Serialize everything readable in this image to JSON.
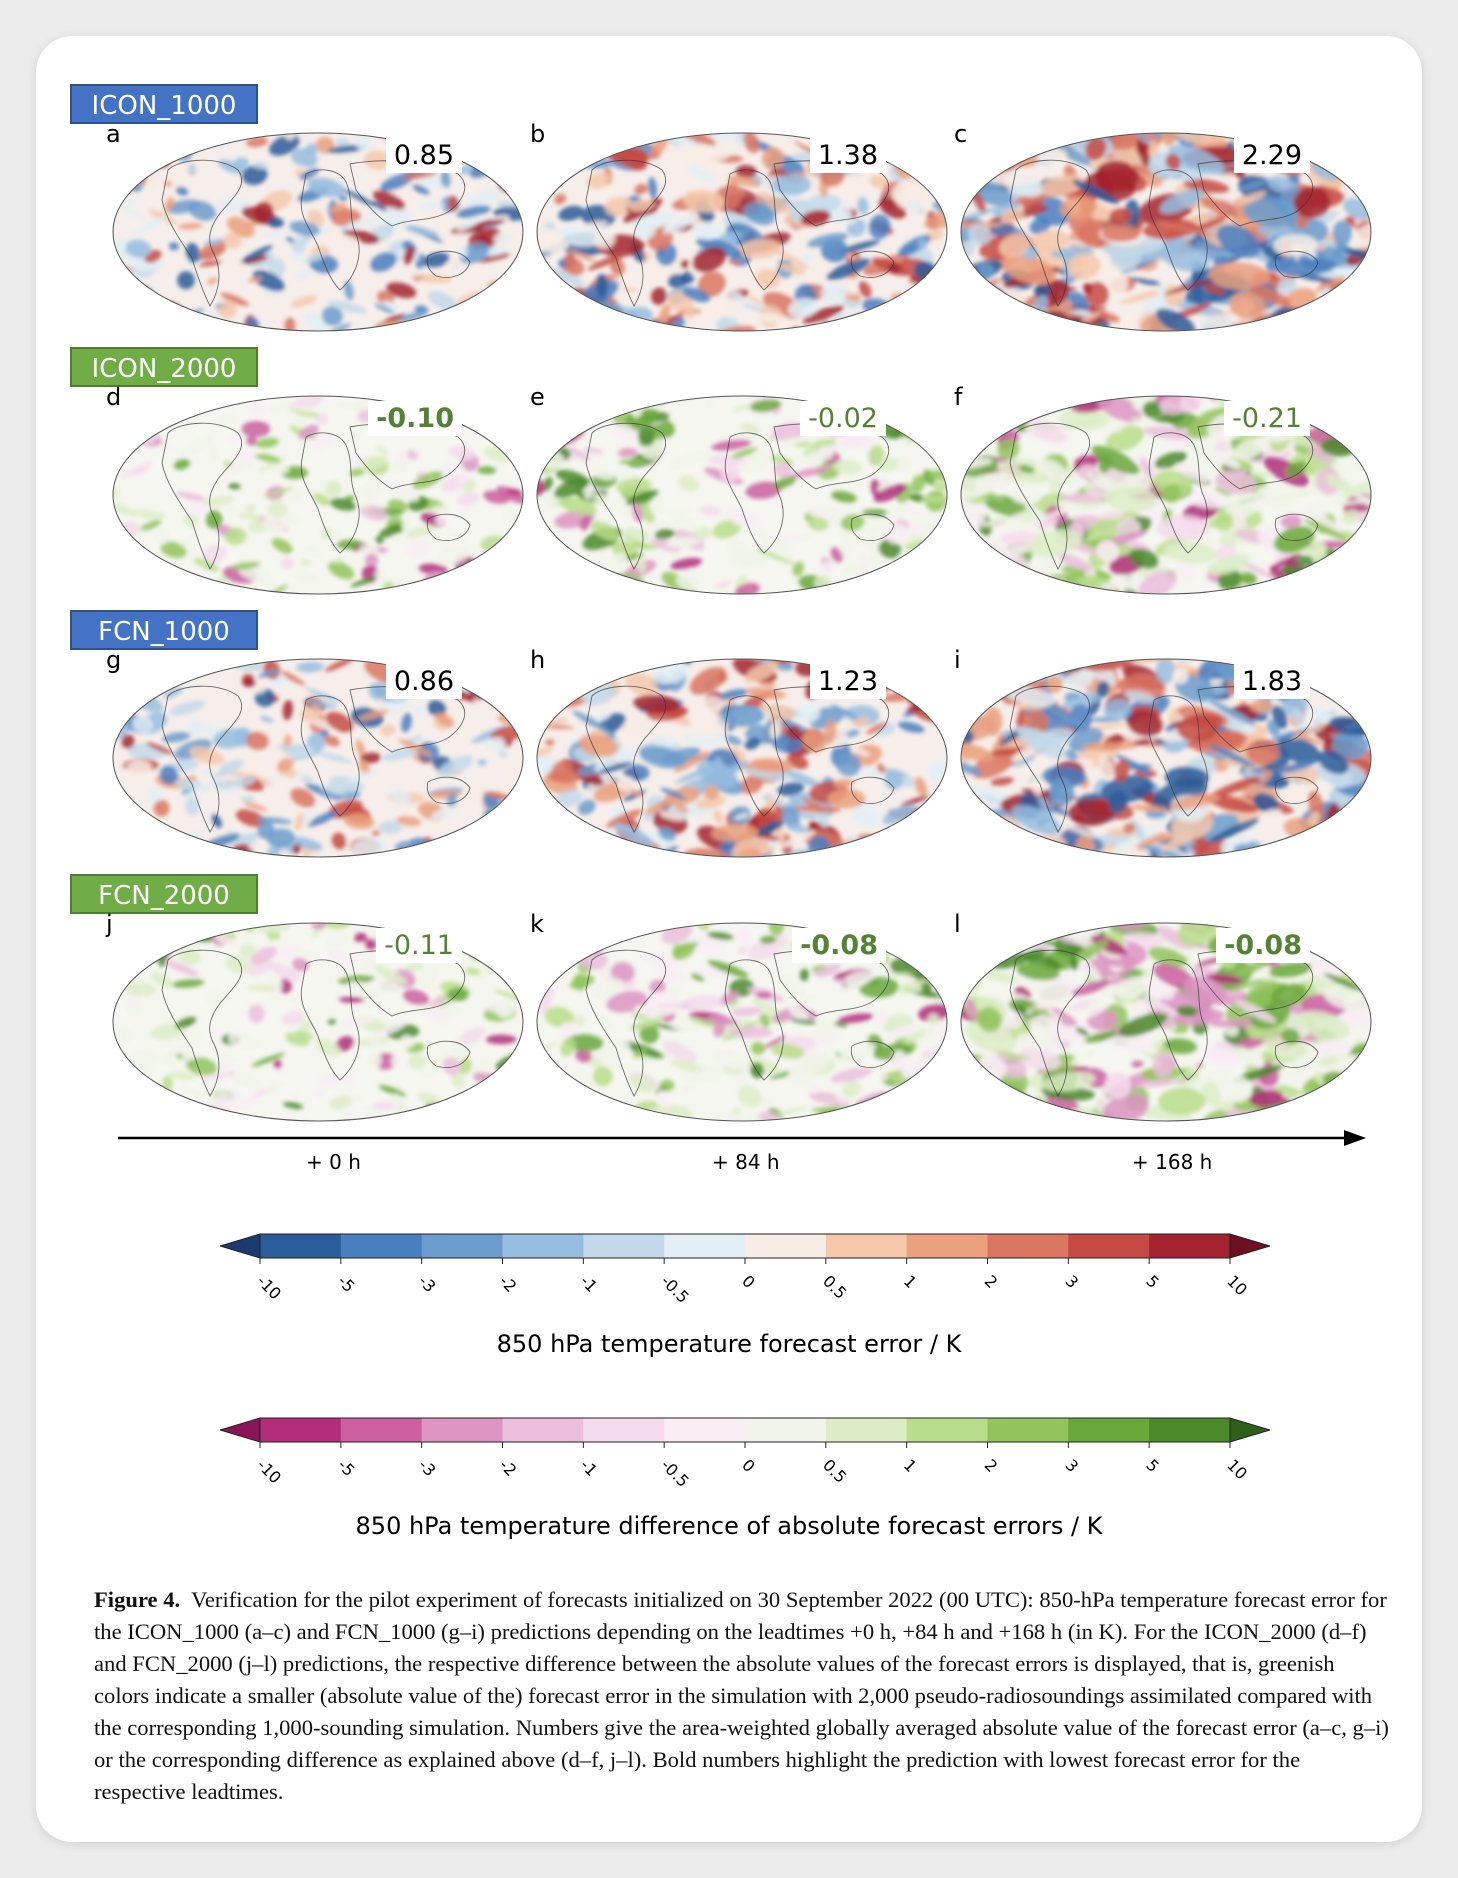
{
  "rows": [
    {
      "label": "ICON_1000",
      "style": "blue",
      "panels": [
        {
          "letter": "a",
          "value": "0.85",
          "bold": false,
          "kind": "error",
          "amp": 0.35
        },
        {
          "letter": "b",
          "value": "1.38",
          "bold": false,
          "kind": "error",
          "amp": 0.6
        },
        {
          "letter": "c",
          "value": "2.29",
          "bold": false,
          "kind": "error",
          "amp": 0.95
        }
      ]
    },
    {
      "label": "ICON_2000",
      "style": "green",
      "panels": [
        {
          "letter": "d",
          "value": "-0.10",
          "bold": true,
          "kind": "diff",
          "amp": 0.25
        },
        {
          "letter": "e",
          "value": "-0.02",
          "bold": false,
          "kind": "diff",
          "amp": 0.4
        },
        {
          "letter": "f",
          "value": "-0.21",
          "bold": false,
          "kind": "diff",
          "amp": 0.8
        }
      ]
    },
    {
      "label": "FCN_1000",
      "style": "blue",
      "panels": [
        {
          "letter": "g",
          "value": "0.86",
          "bold": false,
          "kind": "error",
          "amp": 0.35
        },
        {
          "letter": "h",
          "value": "1.23",
          "bold": false,
          "kind": "error",
          "amp": 0.6
        },
        {
          "letter": "i",
          "value": "1.83",
          "bold": false,
          "kind": "error",
          "amp": 0.85
        }
      ]
    },
    {
      "label": "FCN_2000",
      "style": "green",
      "panels": [
        {
          "letter": "j",
          "value": "-0.11",
          "bold": false,
          "kind": "diff",
          "amp": 0.25
        },
        {
          "letter": "k",
          "value": "-0.08",
          "bold": true,
          "kind": "diff",
          "amp": 0.45
        },
        {
          "letter": "l",
          "value": "-0.08",
          "bold": true,
          "kind": "diff",
          "amp": 0.8
        }
      ]
    }
  ],
  "leadtimes": [
    "+ 0 h",
    "+ 84 h",
    "+ 168 h"
  ],
  "colorbars": [
    {
      "title": "850 hPa temperature forecast error / K",
      "ticks": [
        "-10",
        "-5",
        "-3",
        "-2",
        "-1",
        "-0.5",
        "0",
        "0.5",
        "1",
        "2",
        "3",
        "5",
        "10"
      ],
      "colors": [
        "#2b5c9a",
        "#4a7fbf",
        "#6b9ccd",
        "#97bde0",
        "#c3d9ea",
        "#e3eef5",
        "#f8ede6",
        "#f5c8ac",
        "#eba07e",
        "#da7661",
        "#c54a43",
        "#a3242f"
      ],
      "under": "#1a3a70",
      "over": "#6e1020"
    },
    {
      "title": "850 hPa temperature difference of absolute forecast errors / K",
      "ticks": [
        "-10",
        "-5",
        "-3",
        "-2",
        "-1",
        "-0.5",
        "0",
        "0.5",
        "1",
        "2",
        "3",
        "5",
        "10"
      ],
      "colors": [
        "#b32d7d",
        "#cb5fa0",
        "#dd94c3",
        "#ebbedc",
        "#f4dbec",
        "#f8eef4",
        "#f1f4ea",
        "#dcedc6",
        "#b8dd8a",
        "#92c45c",
        "#6aa83b",
        "#4b8a2a"
      ],
      "under": "#8a1456",
      "over": "#2f6019"
    }
  ],
  "caption": {
    "label": "Figure 4.",
    "text": "Verification for the pilot experiment of forecasts initialized on 30 September 2022 (00 UTC): 850-hPa temperature forecast error for the ICON_1000 (a–c) and FCN_1000 (g–i) predictions depending on the leadtimes +0 h, +84 h and +168 h (in K). For the ICON_2000 (d–f) and FCN_2000 (j–l) predictions, the respective difference between the absolute values of the forecast errors is displayed, that is, greenish colors indicate a smaller (absolute value of the) forecast error in the simulation with 2,000 pseudo-radiosoundings assimilated compared with the corresponding 1,000-sounding simulation. Numbers give the area-weighted globally averaged absolute value of the forecast error (a–c, g–i) or the corresponding difference as explained above (d–f, j–l). Bold numbers highlight the prediction with lowest forecast error for the respective leadtimes."
  }
}
